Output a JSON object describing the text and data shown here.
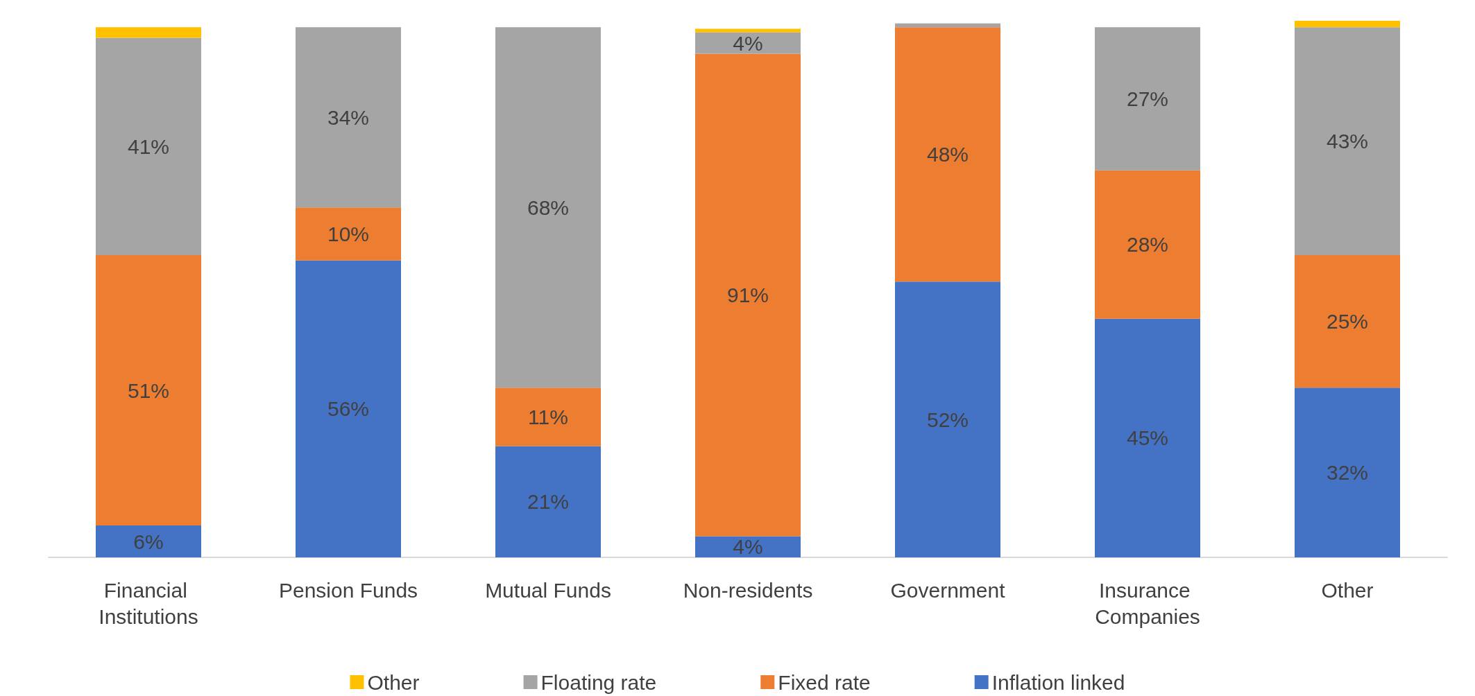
{
  "chart_data": {
    "type": "bar",
    "stacked": true,
    "legend": "bottom",
    "tick_labels": "x",
    "categories": [
      "Financial Institutions",
      "Pension Funds",
      "Mutual Funds",
      "Non-residents",
      "Government",
      "Insurance Companies",
      "Other"
    ],
    "series": [
      {
        "name": "Inflation linked",
        "color": "#4472c4",
        "values": [
          6,
          56,
          21,
          4,
          52,
          45,
          32
        ],
        "value_labels": [
          "6%",
          "56%",
          "21%",
          "4%",
          "52%",
          "45%",
          "32%"
        ]
      },
      {
        "name": "Fixed rate",
        "color": "#ed7d31",
        "values": [
          51,
          10,
          11,
          91,
          48,
          28,
          25
        ],
        "value_labels": [
          "51%",
          "10%",
          "11%",
          "91%",
          "48%",
          "28%",
          "25%"
        ]
      },
      {
        "name": "Floating rate",
        "color": "#a5a5a5",
        "values": [
          41,
          34,
          68,
          4,
          0.7,
          27,
          43
        ],
        "value_labels": [
          "41%",
          "34%",
          "68%",
          "4%",
          null,
          "27%",
          "43%"
        ]
      },
      {
        "name": "Other",
        "color": "#ffc000",
        "values": [
          2,
          0,
          0,
          0.7,
          0,
          0,
          1.2
        ],
        "value_labels": [
          null,
          null,
          null,
          null,
          null,
          null,
          null
        ]
      }
    ]
  }
}
